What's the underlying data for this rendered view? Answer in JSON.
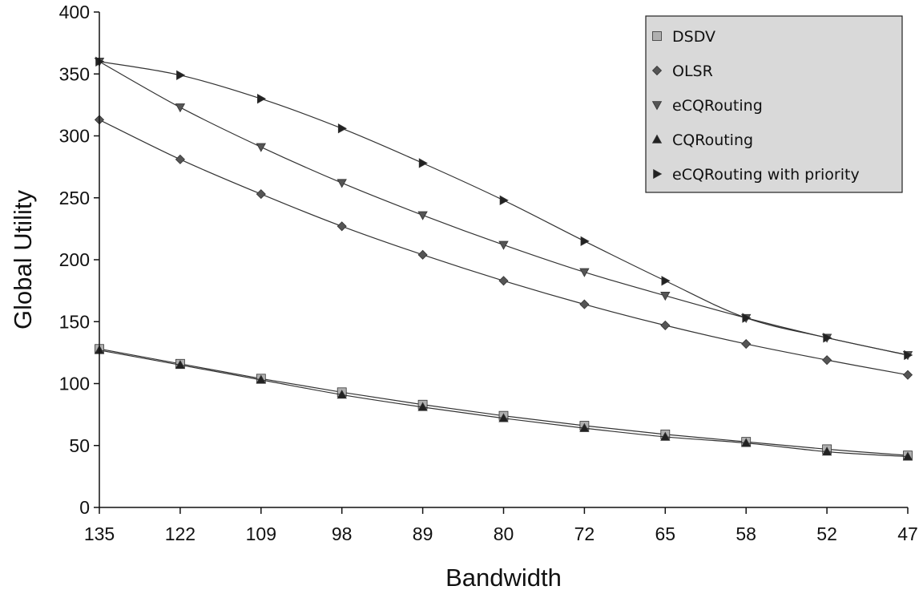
{
  "chart_data": {
    "type": "line",
    "title": "",
    "xlabel": "Bandwidth",
    "ylabel": "Global Utility",
    "categories": [
      "135",
      "122",
      "109",
      "98",
      "89",
      "80",
      "72",
      "65",
      "58",
      "52",
      "47"
    ],
    "ylim": [
      0,
      400
    ],
    "yticks": [
      0,
      50,
      100,
      150,
      200,
      250,
      300,
      350,
      400
    ],
    "grid": false,
    "legend_position": "top-right",
    "series": [
      {
        "name": "DSDV",
        "marker": "square",
        "fill": "#b0b0b0",
        "values": [
          128,
          116,
          104,
          93,
          83,
          74,
          66,
          59,
          53,
          47,
          42
        ]
      },
      {
        "name": "OLSR",
        "marker": "diamond",
        "fill": "#555555",
        "values": [
          313,
          281,
          253,
          227,
          204,
          183,
          164,
          147,
          132,
          119,
          107
        ]
      },
      {
        "name": "eCQRouting",
        "marker": "triangle-down",
        "fill": "#555555",
        "values": [
          360,
          323,
          291,
          262,
          236,
          212,
          190,
          171,
          153,
          137,
          123
        ]
      },
      {
        "name": "CQRouting",
        "marker": "triangle-up",
        "fill": "#222222",
        "values": [
          127,
          115,
          103,
          91,
          81,
          72,
          64,
          57,
          52,
          45,
          41
        ]
      },
      {
        "name": "eCQRouting with priority",
        "marker": "triangle-right",
        "fill": "#222222",
        "values": [
          360,
          349,
          330,
          306,
          278,
          248,
          215,
          183,
          153,
          137,
          123
        ]
      }
    ]
  }
}
